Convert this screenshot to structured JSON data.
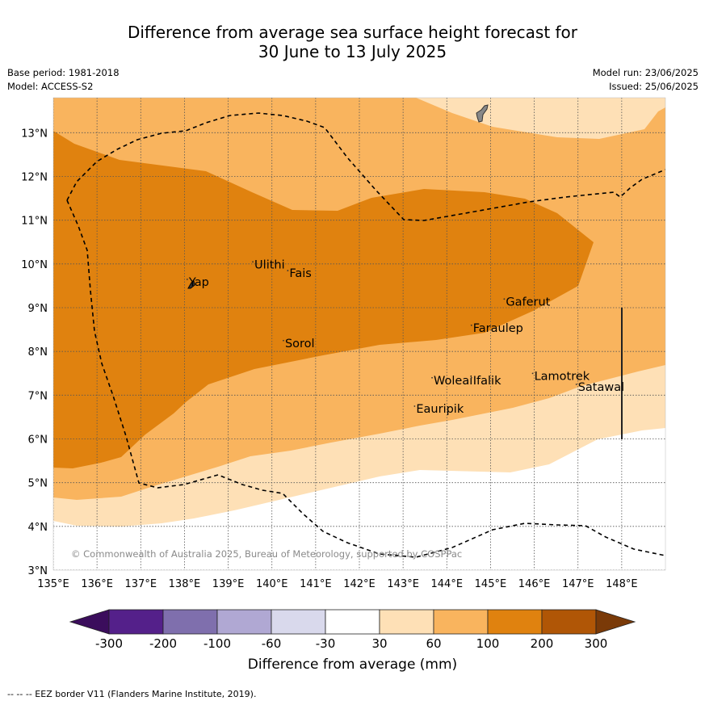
{
  "title_line1": "Difference from average sea surface height forecast for",
  "title_line2": "30 June to 13 July 2025",
  "base_period": "Base period: 1981-2018",
  "model": "Model: ACCESS-S2",
  "model_run": "Model run: 23/06/2025",
  "issued": "Issued: 25/06/2025",
  "copyright": "© Commonwealth of Australia 2025, Bureau of Meteorology, supported by COSPPac",
  "footnote": "--  --  -- EEZ border V11 (Flanders Marine Institute, 2019).",
  "map": {
    "lon_ticks": [
      "135°E",
      "136°E",
      "137°E",
      "138°E",
      "139°E",
      "140°E",
      "141°E",
      "142°E",
      "143°E",
      "144°E",
      "145°E",
      "146°E",
      "147°E",
      "148°E"
    ],
    "lat_ticks": [
      "3°N",
      "4°N",
      "5°N",
      "6°N",
      "7°N",
      "8°N",
      "9°N",
      "10°N",
      "11°N",
      "12°N",
      "13°N"
    ],
    "lon_range": [
      135,
      149
    ],
    "lat_range": [
      3,
      13.8
    ],
    "places": [
      {
        "name": "Yap",
        "lon": 138.1,
        "lat": 9.5
      },
      {
        "name": "Ulithi",
        "lon": 139.6,
        "lat": 9.9
      },
      {
        "name": "Fais",
        "lon": 140.4,
        "lat": 9.7
      },
      {
        "name": "Sorol",
        "lon": 140.3,
        "lat": 8.1
      },
      {
        "name": "Gaferut",
        "lon": 145.35,
        "lat": 9.05
      },
      {
        "name": "Faraulep",
        "lon": 144.6,
        "lat": 8.45
      },
      {
        "name": "Woleai",
        "lon": 143.7,
        "lat": 7.25
      },
      {
        "name": "Ifalik",
        "lon": 144.6,
        "lat": 7.25
      },
      {
        "name": "Lamotrek",
        "lon": 146.0,
        "lat": 7.35
      },
      {
        "name": "Satawal",
        "lon": 147.0,
        "lat": 7.1
      },
      {
        "name": "Eauripik",
        "lon": 143.3,
        "lat": 6.6
      }
    ]
  },
  "colorbar": {
    "title": "Difference from average (mm)",
    "ticks": [
      "-300",
      "-200",
      "-100",
      "-60",
      "-30",
      "30",
      "60",
      "100",
      "200",
      "300"
    ],
    "colors": [
      "#3b0d5c",
      "#54208a",
      "#7f6fad",
      "#b0a8d3",
      "#d9d9ec",
      "#ffffff",
      "#fee0b6",
      "#f9b45e",
      "#e0820f",
      "#b05606",
      "#7a3a08"
    ]
  },
  "legend_colors": {
    "30_60": "#fee0b6",
    "60_100": "#f9b45e",
    "100_200": "#e0820f"
  }
}
